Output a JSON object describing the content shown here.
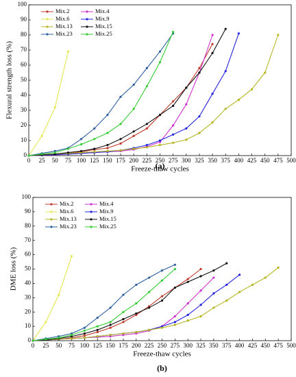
{
  "chart_data": [
    {
      "type": "line",
      "xlabel": "Freeze-thaw cycles",
      "ylabel": "Flexural strength loss (%)",
      "caption": "(a)",
      "x": [
        0,
        25,
        50,
        75,
        100,
        125,
        150,
        175,
        200,
        225,
        250,
        275,
        300,
        325,
        350,
        375,
        400,
        425,
        450,
        475
      ],
      "xlim": [
        0,
        500
      ],
      "xticks": [
        0,
        25,
        50,
        75,
        100,
        125,
        150,
        175,
        200,
        225,
        250,
        275,
        300,
        325,
        350,
        375,
        400,
        425,
        450,
        475,
        500
      ],
      "ylim": [
        0,
        100
      ],
      "yticks": [
        0,
        10,
        20,
        30,
        40,
        50,
        60,
        70,
        80,
        90,
        100
      ],
      "legend": "upper left",
      "series": [
        {
          "name": "Mix.2",
          "color": "#c0392b",
          "values": [
            0,
            0.3,
            0.8,
            1.5,
            2.5,
            4,
            5,
            8,
            13,
            18,
            27,
            36,
            45,
            58,
            74,
            null,
            null,
            null,
            null,
            null
          ]
        },
        {
          "name": "Mix.4",
          "color": "#cc33cc",
          "values": [
            0,
            0.2,
            0.5,
            1,
            1.5,
            2,
            2.5,
            3,
            4,
            6,
            9,
            20,
            34,
            55,
            80,
            null,
            null,
            null,
            null,
            null
          ]
        },
        {
          "name": "Mix.6",
          "color": "#e6e650",
          "values": [
            0,
            13,
            32,
            69,
            null,
            null,
            null,
            null,
            null,
            null,
            null,
            null,
            null,
            null,
            null,
            null,
            null,
            null,
            null,
            null
          ]
        },
        {
          "name": "Mix.9",
          "color": "#2222dd",
          "values": [
            0,
            0.3,
            0.6,
            1,
            1.5,
            2,
            2.5,
            3.5,
            5,
            7,
            10,
            14,
            18,
            26,
            41,
            56,
            81,
            null,
            null,
            null
          ]
        },
        {
          "name": "Mix.13",
          "color": "#b5b520",
          "values": [
            0,
            0.5,
            1,
            1.5,
            2,
            2.5,
            3,
            3.5,
            4.5,
            5.5,
            7,
            8.5,
            10.5,
            15,
            22,
            31,
            37,
            44,
            55,
            80
          ]
        },
        {
          "name": "Mix.15",
          "color": "#111111",
          "values": [
            0,
            0.5,
            1,
            2,
            3,
            4.5,
            7,
            11,
            16,
            21,
            27,
            33,
            45,
            55,
            68,
            84,
            null,
            null,
            null,
            null
          ]
        },
        {
          "name": "Mix.23",
          "color": "#2f5f9f",
          "values": [
            0,
            1.5,
            3,
            5,
            11,
            18,
            27,
            39,
            47,
            58,
            69,
            81,
            null,
            null,
            null,
            null,
            null,
            null,
            null,
            null
          ]
        },
        {
          "name": "Mix.25",
          "color": "#33cc33",
          "values": [
            0,
            1,
            2,
            4.5,
            7.5,
            11,
            15,
            21,
            31,
            46,
            62,
            82,
            null,
            null,
            null,
            null,
            null,
            null,
            null,
            null
          ]
        }
      ]
    },
    {
      "type": "line",
      "xlabel": "Freeze-thaw cycles",
      "ylabel": "DME loss (%)",
      "caption": "(b)",
      "x": [
        0,
        25,
        50,
        75,
        100,
        125,
        150,
        175,
        200,
        225,
        250,
        275,
        300,
        325,
        350,
        375,
        400,
        425,
        450,
        475
      ],
      "xlim": [
        0,
        500
      ],
      "xticks": [
        0,
        25,
        50,
        75,
        100,
        125,
        150,
        175,
        200,
        225,
        250,
        275,
        300,
        325,
        350,
        375,
        400,
        425,
        450,
        475,
        500
      ],
      "ylim": [
        0,
        100
      ],
      "yticks": [
        0,
        10,
        20,
        30,
        40,
        50,
        60,
        70,
        80,
        90,
        100
      ],
      "legend": "upper left",
      "series": [
        {
          "name": "Mix.2",
          "color": "#c0392b",
          "values": [
            0,
            0.5,
            1,
            2,
            3.5,
            6,
            9,
            13,
            18,
            24,
            31,
            37,
            43,
            50,
            null,
            null,
            null,
            null,
            null,
            null
          ]
        },
        {
          "name": "Mix.4",
          "color": "#cc33cc",
          "values": [
            0,
            0.5,
            1,
            1.5,
            2,
            2.5,
            3,
            4,
            5,
            7,
            10,
            17,
            26,
            35,
            44,
            null,
            null,
            null,
            null,
            null
          ]
        },
        {
          "name": "Mix.6",
          "color": "#e6e650",
          "values": [
            0,
            13,
            32,
            59,
            null,
            null,
            null,
            null,
            null,
            null,
            null,
            null,
            null,
            null,
            null,
            null,
            null,
            null,
            null,
            null
          ]
        },
        {
          "name": "Mix.9",
          "color": "#2222dd",
          "values": [
            0,
            0.5,
            1,
            1.5,
            2,
            3,
            4,
            5,
            6,
            7.5,
            10,
            13,
            18,
            25,
            33,
            39,
            46,
            null,
            null,
            null
          ]
        },
        {
          "name": "Mix.13",
          "color": "#b5b520",
          "values": [
            0,
            0.5,
            1,
            1.5,
            2,
            3,
            4,
            5,
            6,
            7.5,
            9,
            11,
            14,
            17,
            23,
            28,
            34,
            39,
            44,
            51
          ]
        },
        {
          "name": "Mix.15",
          "color": "#111111",
          "values": [
            0,
            0.5,
            1.5,
            3,
            5,
            7.5,
            11,
            15,
            19,
            23,
            28,
            37,
            41,
            45,
            49,
            54,
            null,
            null,
            null,
            null
          ]
        },
        {
          "name": "Mix.23",
          "color": "#2f5f9f",
          "values": [
            0,
            1.5,
            3,
            5,
            9,
            16,
            23,
            32,
            39,
            44,
            49,
            53,
            null,
            null,
            null,
            null,
            null,
            null,
            null,
            null
          ]
        },
        {
          "name": "Mix.25",
          "color": "#33cc33",
          "values": [
            0,
            1,
            2,
            4,
            7,
            10,
            13,
            20,
            26,
            34,
            42,
            50,
            null,
            null,
            null,
            null,
            null,
            null,
            null,
            null
          ]
        }
      ]
    }
  ]
}
